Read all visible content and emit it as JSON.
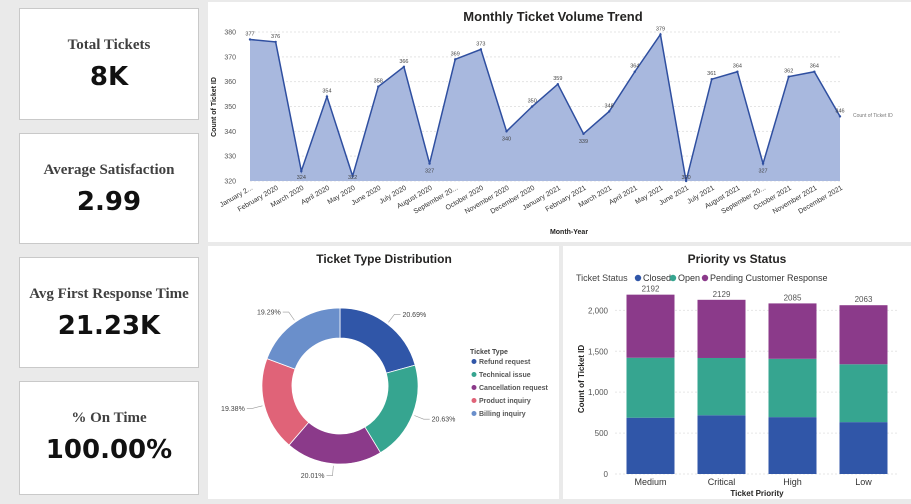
{
  "kpis": [
    {
      "title": "Total Tickets",
      "value": "8K"
    },
    {
      "title": "Average Satisfaction",
      "value": "2.99"
    },
    {
      "title": "Avg First Response Time",
      "value": "21.23K"
    },
    {
      "title": "% On Time",
      "value": "100.00%"
    }
  ],
  "colors": {
    "area": "#a8b8de",
    "line": "#2f4fa0",
    "refund": "#3056a8",
    "technical": "#36a590",
    "cancellation": "#8b3a8a",
    "product": "#e06378",
    "billing": "#6a8fcb",
    "closed": "#3056a8",
    "open": "#36a590",
    "pending": "#8b3a8a"
  },
  "chart_data": [
    {
      "type": "area",
      "title": "Monthly Ticket Volume Trend",
      "xlabel": "Month-Year",
      "ylabel": "Count of Ticket ID",
      "series_label": "Count of Ticket ID",
      "ylim": [
        320,
        380
      ],
      "yticks": [
        320,
        330,
        340,
        350,
        360,
        370,
        380
      ],
      "categories": [
        "January 2...",
        "February 2020",
        "March 2020",
        "April 2020",
        "May 2020",
        "June 2020",
        "July 2020",
        "August 2020",
        "September 20...",
        "October 2020",
        "November 2020",
        "December 2020",
        "January 2021",
        "February 2021",
        "March 2021",
        "April 2021",
        "May 2021",
        "June 2021",
        "July 2021",
        "August 2021",
        "September 20...",
        "October 2021",
        "November 2021",
        "December 2021"
      ],
      "values": [
        377,
        376,
        324,
        354,
        322,
        358,
        366,
        327,
        369,
        373,
        340,
        350,
        359,
        339,
        348,
        364,
        379,
        320,
        361,
        364,
        327,
        362,
        364,
        346
      ],
      "labels": [
        "377",
        "376",
        "324",
        "354",
        "322",
        "358",
        "366",
        "327",
        "369",
        "373",
        "340",
        "350",
        "359",
        "339",
        "348",
        "364",
        "379",
        "320",
        "361",
        "364",
        "327",
        "362",
        "364",
        "346"
      ]
    },
    {
      "type": "pie",
      "title": "Ticket Type Distribution",
      "legend_title": "Ticket Type",
      "categories": [
        "Refund request",
        "Technical issue",
        "Cancellation request",
        "Product inquiry",
        "Billing inquiry"
      ],
      "values": [
        20.69,
        20.63,
        20.01,
        19.38,
        19.29
      ],
      "labels": [
        "20.69%",
        "20.63%",
        "20.01%",
        "19.38%",
        "19.29%"
      ]
    },
    {
      "type": "bar",
      "stacked": true,
      "title": "Priority vs Status",
      "legend_title": "Ticket Status",
      "xlabel": "Ticket Priority",
      "ylabel": "Count of Ticket ID",
      "ylim": [
        0,
        2200
      ],
      "yticks": [
        0,
        500,
        1000,
        1500,
        2000
      ],
      "ytick_labels": [
        "0",
        "500",
        "1,000",
        "1,500",
        "2,000"
      ],
      "categories": [
        "Medium",
        "Critical",
        "High",
        "Low"
      ],
      "totals": [
        "2192",
        "2129",
        "2085",
        "2063"
      ],
      "series": [
        {
          "name": "Closed",
          "values": [
            688,
            718,
            695,
            634
          ]
        },
        {
          "name": "Open",
          "values": [
            733,
            700,
            713,
            707
          ]
        },
        {
          "name": "Pending Customer Response",
          "values": [
            771,
            711,
            677,
            722
          ]
        }
      ]
    }
  ]
}
